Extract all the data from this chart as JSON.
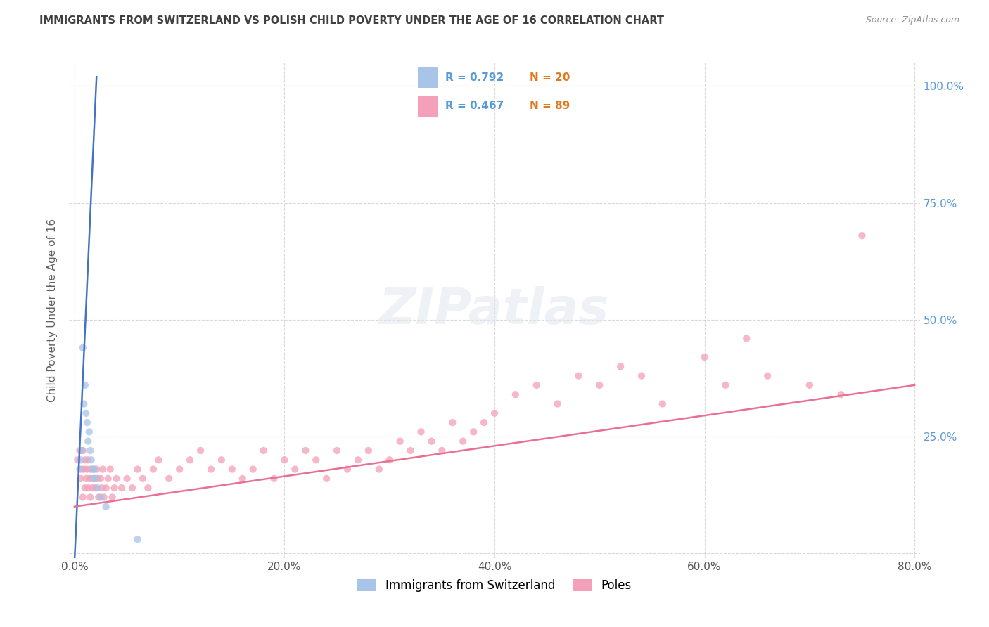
{
  "title": "IMMIGRANTS FROM SWITZERLAND VS POLISH CHILD POVERTY UNDER THE AGE OF 16 CORRELATION CHART",
  "source": "Source: ZipAtlas.com",
  "ylabel": "Child Poverty Under the Age of 16",
  "legend_swiss": "Immigrants from Switzerland",
  "legend_poles": "Poles",
  "r_swiss": 0.792,
  "n_swiss": 20,
  "r_poles": 0.467,
  "n_poles": 89,
  "color_swiss": "#a8c4e8",
  "color_poles": "#f4a0b8",
  "line_swiss": "#4472c4",
  "line_poles": "#e87090",
  "yticklabel_color": "#5b9bd5",
  "background_color": "#ffffff",
  "grid_color": "#d0d0d0",
  "title_color": "#404040",
  "source_color": "#909090",
  "ylabel_color": "#606060",
  "xlim": [
    -0.005,
    0.805
  ],
  "ylim": [
    -0.01,
    1.05
  ],
  "xtick_vals": [
    0.0,
    0.2,
    0.4,
    0.6,
    0.8
  ],
  "xtick_labels": [
    "0.0%",
    "20.0%",
    "40.0%",
    "60.0%",
    "80.0%"
  ],
  "ytick_vals": [
    0.0,
    0.25,
    0.5,
    0.75,
    1.0
  ],
  "ytick_labels": [
    "",
    "25.0%",
    "50.0%",
    "75.0%",
    "100.0%"
  ],
  "swiss_x": [
    0.005,
    0.006,
    0.007,
    0.008,
    0.009,
    0.01,
    0.011,
    0.012,
    0.013,
    0.014,
    0.015,
    0.016,
    0.017,
    0.018,
    0.019,
    0.02,
    0.022,
    0.025,
    0.03,
    0.06
  ],
  "swiss_y": [
    0.18,
    0.2,
    0.22,
    0.44,
    0.32,
    0.36,
    0.3,
    0.28,
    0.24,
    0.26,
    0.22,
    0.2,
    0.18,
    0.16,
    0.18,
    0.16,
    0.14,
    0.12,
    0.1,
    0.03
  ],
  "swiss_line_x": [
    0.0,
    0.021
  ],
  "swiss_line_y": [
    -0.02,
    1.02
  ],
  "poles_line_x": [
    0.0,
    0.8
  ],
  "poles_line_y": [
    0.1,
    0.36
  ],
  "poles_x": [
    0.003,
    0.005,
    0.006,
    0.007,
    0.008,
    0.008,
    0.009,
    0.01,
    0.01,
    0.011,
    0.012,
    0.013,
    0.013,
    0.014,
    0.015,
    0.015,
    0.016,
    0.017,
    0.018,
    0.019,
    0.02,
    0.021,
    0.022,
    0.023,
    0.025,
    0.026,
    0.027,
    0.028,
    0.03,
    0.032,
    0.034,
    0.036,
    0.038,
    0.04,
    0.045,
    0.05,
    0.055,
    0.06,
    0.065,
    0.07,
    0.075,
    0.08,
    0.09,
    0.1,
    0.11,
    0.12,
    0.13,
    0.14,
    0.15,
    0.16,
    0.17,
    0.18,
    0.19,
    0.2,
    0.21,
    0.22,
    0.23,
    0.24,
    0.25,
    0.26,
    0.27,
    0.28,
    0.29,
    0.3,
    0.31,
    0.32,
    0.33,
    0.34,
    0.35,
    0.36,
    0.37,
    0.38,
    0.39,
    0.4,
    0.42,
    0.44,
    0.46,
    0.48,
    0.5,
    0.52,
    0.54,
    0.56,
    0.6,
    0.62,
    0.64,
    0.66,
    0.7,
    0.73,
    0.75
  ],
  "poles_y": [
    0.2,
    0.22,
    0.16,
    0.18,
    0.22,
    0.12,
    0.18,
    0.2,
    0.14,
    0.16,
    0.18,
    0.2,
    0.14,
    0.16,
    0.18,
    0.12,
    0.16,
    0.14,
    0.18,
    0.16,
    0.14,
    0.18,
    0.16,
    0.12,
    0.16,
    0.14,
    0.18,
    0.12,
    0.14,
    0.16,
    0.18,
    0.12,
    0.14,
    0.16,
    0.14,
    0.16,
    0.14,
    0.18,
    0.16,
    0.14,
    0.18,
    0.2,
    0.16,
    0.18,
    0.2,
    0.22,
    0.18,
    0.2,
    0.18,
    0.16,
    0.18,
    0.22,
    0.16,
    0.2,
    0.18,
    0.22,
    0.2,
    0.16,
    0.22,
    0.18,
    0.2,
    0.22,
    0.18,
    0.2,
    0.24,
    0.22,
    0.26,
    0.24,
    0.22,
    0.28,
    0.24,
    0.26,
    0.28,
    0.3,
    0.34,
    0.36,
    0.32,
    0.38,
    0.36,
    0.4,
    0.38,
    0.32,
    0.42,
    0.36,
    0.46,
    0.38,
    0.36,
    0.34,
    0.68
  ]
}
